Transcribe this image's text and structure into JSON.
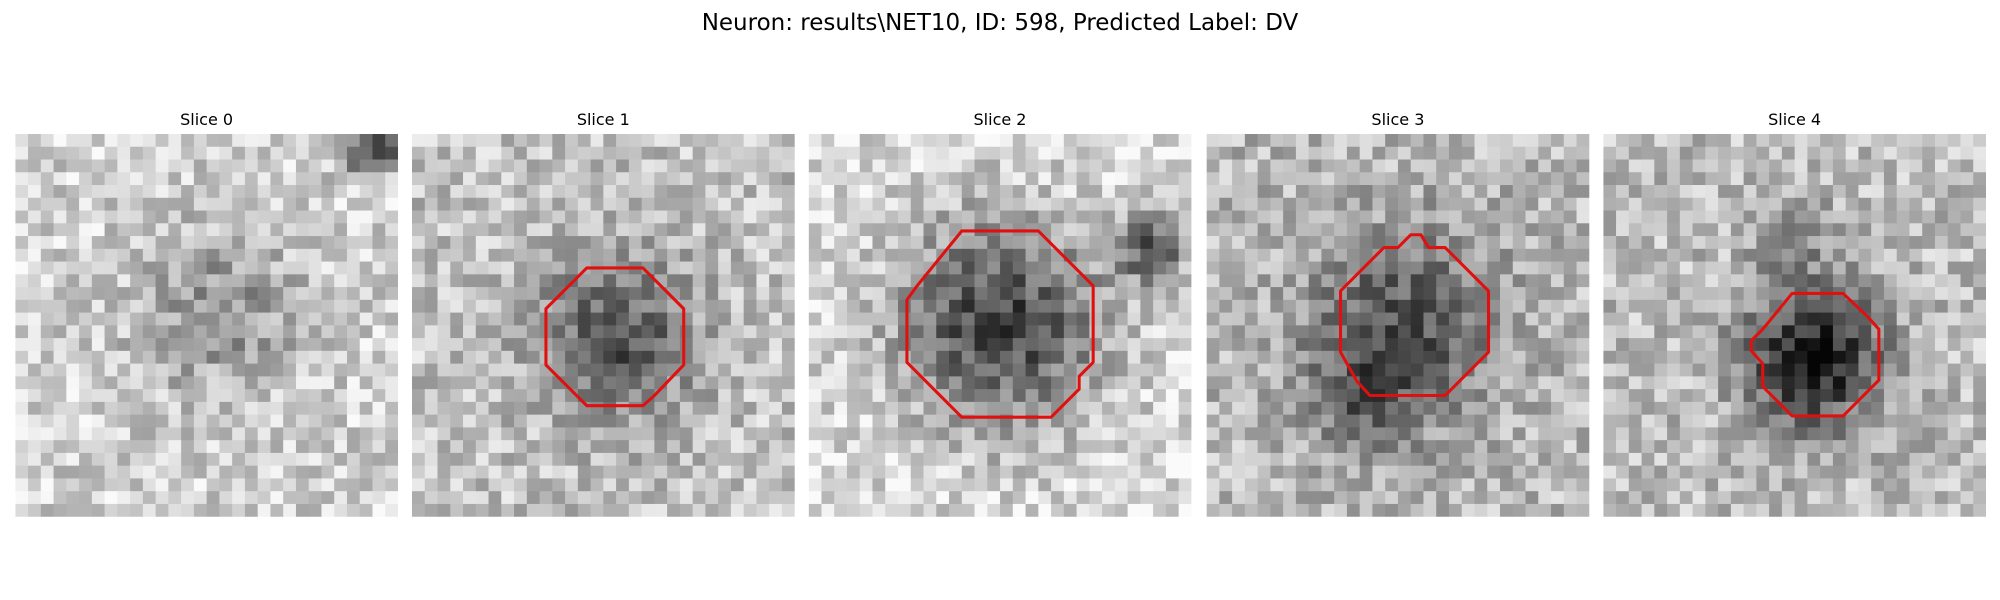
{
  "title": "Neuron: results\\NET10, ID: 598, Predicted Label: DV",
  "panels": [
    {
      "title": "Slice 0"
    },
    {
      "title": "Slice 1"
    },
    {
      "title": "Slice 2"
    },
    {
      "title": "Slice 3"
    },
    {
      "title": "Slice 4"
    }
  ]
}
